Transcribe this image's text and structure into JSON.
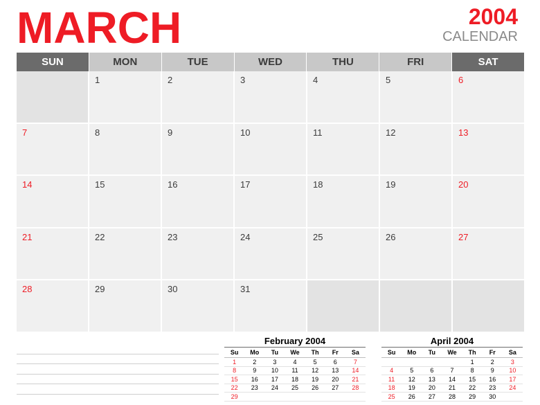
{
  "title": {
    "month": "MARCH",
    "year": "2004",
    "label": "CALENDAR"
  },
  "colors": {
    "accent": "#ee1c25",
    "weekend_header": "#6b6b6b",
    "weekday_header": "#c8c8c8",
    "cell": "#f0f0f0",
    "empty_cell": "#e3e3e3"
  },
  "weekdays": [
    "SUN",
    "MON",
    "TUE",
    "WED",
    "THU",
    "FRI",
    "SAT"
  ],
  "weeks": [
    [
      "",
      "1",
      "2",
      "3",
      "4",
      "5",
      "6"
    ],
    [
      "7",
      "8",
      "9",
      "10",
      "11",
      "12",
      "13"
    ],
    [
      "14",
      "15",
      "16",
      "17",
      "18",
      "19",
      "20"
    ],
    [
      "21",
      "22",
      "23",
      "24",
      "25",
      "26",
      "27"
    ],
    [
      "28",
      "29",
      "30",
      "31",
      "",
      "",
      ""
    ]
  ],
  "mini_calendars": [
    {
      "title": "February 2004",
      "days": [
        "Su",
        "Mo",
        "Tu",
        "We",
        "Th",
        "Fr",
        "Sa"
      ],
      "weeks": [
        [
          "1",
          "2",
          "3",
          "4",
          "5",
          "6",
          "7"
        ],
        [
          "8",
          "9",
          "10",
          "11",
          "12",
          "13",
          "14"
        ],
        [
          "15",
          "16",
          "17",
          "18",
          "19",
          "20",
          "21"
        ],
        [
          "22",
          "23",
          "24",
          "25",
          "26",
          "27",
          "28"
        ],
        [
          "29",
          "",
          "",
          "",
          "",
          "",
          ""
        ]
      ]
    },
    {
      "title": "April 2004",
      "days": [
        "Su",
        "Mo",
        "Tu",
        "We",
        "Th",
        "Fr",
        "Sa"
      ],
      "weeks": [
        [
          "",
          "",
          "",
          "",
          "1",
          "2",
          "3"
        ],
        [
          "4",
          "5",
          "6",
          "7",
          "8",
          "9",
          "10"
        ],
        [
          "11",
          "12",
          "13",
          "14",
          "15",
          "16",
          "17"
        ],
        [
          "18",
          "19",
          "20",
          "21",
          "22",
          "23",
          "24"
        ],
        [
          "25",
          "26",
          "27",
          "28",
          "29",
          "30",
          ""
        ]
      ]
    }
  ]
}
